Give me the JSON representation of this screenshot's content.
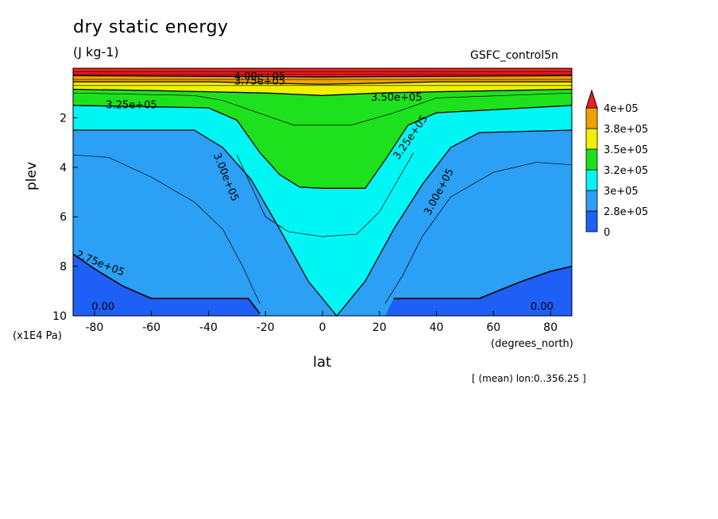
{
  "figure": {
    "title": "dry static energy",
    "units": "(J kg-1)",
    "experiment": "GSFC_control5n",
    "xlabel": "lat",
    "ylabel": "plev",
    "x_unit": "(degrees_north)",
    "y_unit": "(x1E4 Pa)",
    "note": "[ (mean) lon:0..356.25 ]"
  },
  "chart_data": {
    "type": "heatmap",
    "title": "dry static energy",
    "xlabel": "lat",
    "ylabel": "plev",
    "xlim": [
      -87.5,
      87.5
    ],
    "ylim": [
      10,
      0
    ],
    "x_ticks": [
      -80,
      -60,
      -40,
      -20,
      0,
      20,
      40,
      60,
      80
    ],
    "y_ticks": [
      2,
      4,
      6,
      8,
      10
    ],
    "colorbar": {
      "levels": [
        "0",
        "2.8e+05",
        "3e+05",
        "3.2e+05",
        "3.5e+05",
        "3.8e+05",
        "4e+05"
      ],
      "colors": [
        "#1e5ff5",
        "#2ba0f5",
        "#00f5f5",
        "#1ee11e",
        "#f0f000",
        "#f0a000",
        "#f01e1e"
      ],
      "extend": "max"
    },
    "contour_labels": [
      {
        "text": "4.00e+05",
        "lat": -22,
        "plev": 0.35
      },
      {
        "text": "3.75e+05",
        "lat": -22,
        "plev": 0.55
      },
      {
        "text": "3.50e+05",
        "lat": 26,
        "plev": 1.2
      },
      {
        "text": "3.25e+05",
        "lat": -67,
        "plev": 1.5
      },
      {
        "text": "3.25e+05",
        "lat": 31,
        "plev": 2.8
      },
      {
        "text": "3.00e+05",
        "lat": -34,
        "plev": 4.4
      },
      {
        "text": "3.00e+05",
        "lat": 41,
        "plev": 5.0
      },
      {
        "text": "2.75e+05",
        "lat": -78,
        "plev": 7.9
      },
      {
        "text": "0.00",
        "lat": -77,
        "plev": 9.65
      },
      {
        "text": "0.00",
        "lat": 77,
        "plev": 9.65
      }
    ],
    "bands": [
      {
        "name": "0-2.8e+05",
        "color": "#1e5ff5",
        "upper_plev": [
          [
            -87.5,
            7.5
          ],
          [
            -80,
            8.1
          ],
          [
            -70,
            8.8
          ],
          [
            -60,
            9.3
          ],
          [
            -40,
            9.3
          ],
          [
            -30,
            9.3
          ],
          [
            -26,
            9.3
          ],
          [
            -22,
            9.9
          ],
          [
            -22,
            10
          ],
          [
            -87.5,
            10
          ]
        ],
        "upper_plev_right": [
          [
            22,
            10
          ],
          [
            25,
            9.3
          ],
          [
            30,
            9.3
          ],
          [
            40,
            9.3
          ],
          [
            55,
            9.3
          ],
          [
            70,
            8.6
          ],
          [
            80,
            8.2
          ],
          [
            87.5,
            8.0
          ],
          [
            87.5,
            10
          ]
        ]
      },
      {
        "name": "2.8e+05-3e+05",
        "color": "#2ba0f5",
        "upper_plev_by_lat": [
          [
            -87.5,
            2.5
          ],
          [
            -45,
            2.5
          ],
          [
            -35,
            3.2
          ],
          [
            -25,
            4.5
          ],
          [
            -15,
            6.5
          ],
          [
            -5,
            8.6
          ],
          [
            5,
            10
          ],
          [
            15,
            8.6
          ],
          [
            25,
            6.5
          ],
          [
            35,
            4.7
          ],
          [
            45,
            3.2
          ],
          [
            55,
            2.6
          ],
          [
            87.5,
            2.5
          ]
        ]
      },
      {
        "name": "3e+05-3.2e+05",
        "color": "#00f5f5",
        "upper_plev_by_lat": [
          [
            -87.5,
            1.5
          ],
          [
            -40,
            1.6
          ],
          [
            -30,
            2.1
          ],
          [
            -22,
            3.4
          ],
          [
            -15,
            4.3
          ],
          [
            -8,
            4.8
          ],
          [
            0,
            4.85
          ],
          [
            15,
            4.85
          ],
          [
            22,
            3.7
          ],
          [
            30,
            2.3
          ],
          [
            40,
            1.8
          ],
          [
            87.5,
            1.5
          ]
        ]
      },
      {
        "name": "3.2e+05-3.5e+05",
        "color": "#1ee11e",
        "upper_plev_by_lat": [
          [
            -87.5,
            0.85
          ],
          [
            -60,
            0.9
          ],
          [
            -40,
            0.95
          ],
          [
            -20,
            1.0
          ],
          [
            0,
            1.1
          ],
          [
            20,
            1.0
          ],
          [
            40,
            0.95
          ],
          [
            87.5,
            0.85
          ]
        ]
      },
      {
        "name": "3.5e+05-3.8e+05",
        "color": "#f0f000",
        "upper_plev_by_lat": [
          [
            -87.5,
            0.55
          ],
          [
            -40,
            0.55
          ],
          [
            -20,
            0.6
          ],
          [
            0,
            0.65
          ],
          [
            20,
            0.6
          ],
          [
            40,
            0.55
          ],
          [
            87.5,
            0.55
          ]
        ]
      },
      {
        "name": "3.8e+05-4e+05",
        "color": "#f0a000",
        "upper_plev_by_lat": [
          [
            -87.5,
            0.3
          ],
          [
            0,
            0.35
          ],
          [
            87.5,
            0.3
          ]
        ]
      },
      {
        "name": "4e+05+",
        "color": "#f01e1e",
        "upper_plev_by_lat": [
          [
            -87.5,
            0
          ],
          [
            87.5,
            0
          ]
        ]
      }
    ]
  }
}
